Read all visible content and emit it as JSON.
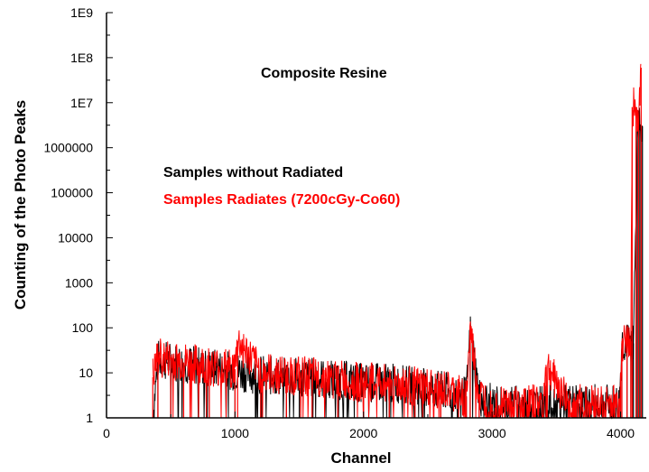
{
  "chart_data": {
    "type": "line",
    "title": "",
    "xlabel": "Channel",
    "ylabel": "Counting of the Photo Peaks",
    "xlim": [
      0,
      4200
    ],
    "ylim": [
      1,
      1000000000
    ],
    "y_scale": "log",
    "grid": false,
    "x_ticks": [
      "0",
      "1000",
      "2000",
      "3000",
      "4000"
    ],
    "y_ticks": [
      "1",
      "10",
      "100",
      "1000",
      "10000",
      "100000",
      "1000000",
      "1E7",
      "1E8",
      "1E9"
    ],
    "annotations": [
      "Composite Resine",
      "Samples without Radiated",
      "Samples Radiates (7200cGy-Co60)"
    ],
    "colors": {
      "black_series": "#000000",
      "red_series": "#ff0000"
    },
    "series": [
      {
        "name": "Samples without Radiated",
        "color": "#000000",
        "x": [
          360,
          400,
          500,
          600,
          800,
          1000,
          1200,
          1400,
          1500,
          1600,
          1800,
          2000,
          2200,
          2400,
          2600,
          2800,
          2830,
          2900,
          3000,
          3200,
          3400,
          3600,
          3800,
          3990,
          4010,
          4050,
          4080,
          4100,
          4130,
          4150,
          4170
        ],
        "y": [
          1,
          20,
          18,
          16,
          13,
          11,
          9,
          8,
          8,
          8,
          7,
          6,
          6,
          5,
          4,
          3,
          80,
          3,
          2,
          2,
          2,
          2,
          2,
          2,
          45,
          45,
          45,
          45,
          3000000,
          3000000,
          3000000
        ]
      },
      {
        "name": "Samples Radiates (7200cGy-Co60)",
        "color": "#ff0000",
        "x": [
          360,
          400,
          500,
          600,
          800,
          1000,
          1020,
          1200,
          1400,
          1600,
          1800,
          2000,
          2200,
          2400,
          2600,
          2800,
          2830,
          2900,
          3000,
          3200,
          3400,
          3420,
          3600,
          3800,
          3990,
          4000,
          4010,
          4050,
          4080,
          4090,
          4120,
          4140,
          4160
        ],
        "y": [
          8,
          22,
          19,
          17,
          14,
          12,
          50,
          10,
          9,
          8,
          7,
          6,
          6,
          5,
          4,
          3,
          90,
          3,
          2,
          2,
          2,
          15,
          2,
          2,
          2,
          10,
          50,
          50,
          50,
          8000000,
          8000000,
          3000000,
          60000000
        ]
      }
    ]
  }
}
